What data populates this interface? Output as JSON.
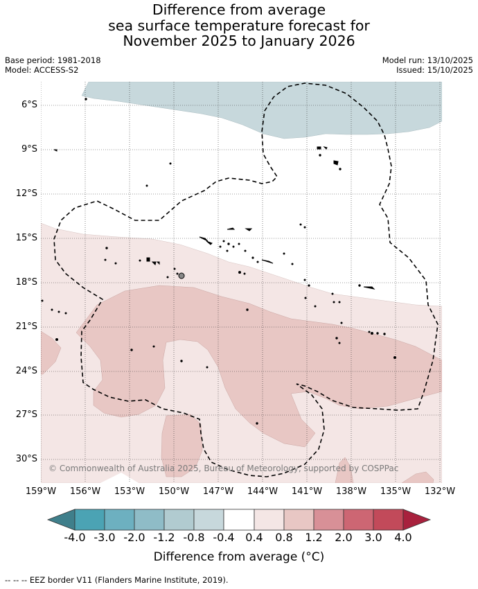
{
  "title": {
    "line1": "Difference from average",
    "line2": "sea surface temperature forecast for",
    "line3": "November 2025 to January 2026"
  },
  "meta": {
    "base_period": "Base period: 1981-2018",
    "model": "Model: ACCESS-S2",
    "model_run": "Model run: 13/10/2025",
    "issued": "Issued: 15/10/2025"
  },
  "map": {
    "lat_labels": [
      "6°S",
      "9°S",
      "12°S",
      "15°S",
      "18°S",
      "21°S",
      "24°S",
      "27°S",
      "30°S"
    ],
    "lon_labels": [
      "159°W",
      "156°W",
      "153°W",
      "150°W",
      "147°W",
      "144°W",
      "141°W",
      "138°W",
      "135°W",
      "132°W"
    ],
    "copyright": "© Commonwealth of Australia 2025, Bureau of Meteorology, supported by COSPPac",
    "background_anomaly": "-0.4 to 0.4",
    "regions": [
      {
        "name": "cool-band-north",
        "range": "-0.8 to -0.4"
      },
      {
        "name": "warm-band-0.4-0.8",
        "range": "0.4 to 0.8"
      },
      {
        "name": "warm-band-0.8-1.2",
        "range": "0.8 to 1.2"
      }
    ]
  },
  "colorbar": {
    "title": "Difference from average (°C)",
    "ticks": [
      "-4.0",
      "-3.0",
      "-2.0",
      "-1.2",
      "-0.8",
      "-0.4",
      "0.4",
      "0.8",
      "1.2",
      "2.0",
      "3.0",
      "4.0"
    ],
    "colors": [
      "#3f7f8b",
      "#4ba3b4",
      "#6db0c0",
      "#8fbcc7",
      "#b1cbd0",
      "#c7d8dc",
      "#ffffff",
      "#f4e6e5",
      "#e8c7c4",
      "#d89097",
      "#cd6673",
      "#c24a5a",
      "#a8213d"
    ]
  },
  "footer": "--  --  -- EEZ border V11 (Flanders Marine Institute, 2019)."
}
